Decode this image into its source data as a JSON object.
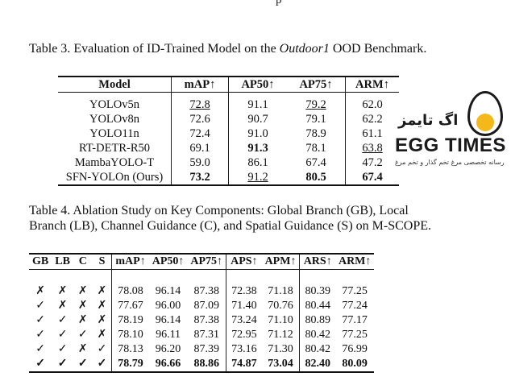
{
  "top_fragment": "p",
  "table3": {
    "label": "Table 3.",
    "caption_pre": " Evaluation of ID-Trained Model on the ",
    "caption_ital": "Outdoor1",
    "caption_post": " OOD Benchmark.",
    "headers": [
      "Model",
      "mAP↑",
      "AP50↑",
      "AP75↑",
      "ARM↑"
    ],
    "rows": [
      {
        "model": "YOLOv5n",
        "map": "72.8",
        "ap50": "91.1",
        "ap75": "79.2",
        "arm": "62.0"
      },
      {
        "model": "YOLOv8n",
        "map": "72.6",
        "ap50": "90.7",
        "ap75": "79.1",
        "arm": "62.2"
      },
      {
        "model": "YOLO11n",
        "map": "72.4",
        "ap50": "91.0",
        "ap75": "78.9",
        "arm": "61.1"
      },
      {
        "model": "RT-DETR-R50",
        "map": "69.1",
        "ap50": "91.3",
        "ap75": "78.1",
        "arm": "63.8"
      },
      {
        "model": "MambaYOLO-T",
        "map": "59.0",
        "ap50": "86.1",
        "ap75": "67.4",
        "arm": "47.2"
      },
      {
        "model": "SFN-YOLOn (Ours)",
        "map": "73.2",
        "ap50": "91.2",
        "ap75": "80.5",
        "arm": "67.4"
      }
    ]
  },
  "table4": {
    "label": "Table 4.",
    "caption": " Ablation Study on Key Components: Global Branch (GB), Local Branch (LB), Channel Guidance (C), and Spatial Guidance (S) on M-SCOPE.",
    "headers": [
      "GB",
      "LB",
      "C",
      "S",
      "mAP↑",
      "AP50↑",
      "AP75↑",
      "APS↑",
      "APM↑",
      "ARS↑",
      "ARM↑"
    ],
    "rows": [
      {
        "gb": "✗",
        "lb": "✗",
        "c": "✗",
        "s": "✗",
        "map": "78.08",
        "ap50": "96.14",
        "ap75": "87.38",
        "aps": "72.38",
        "apm": "71.18",
        "ars": "80.39",
        "arm": "77.25"
      },
      {
        "gb": "✓",
        "lb": "✗",
        "c": "✗",
        "s": "✗",
        "map": "77.67",
        "ap50": "96.00",
        "ap75": "87.09",
        "aps": "71.40",
        "apm": "70.76",
        "ars": "80.44",
        "arm": "77.24"
      },
      {
        "gb": "✓",
        "lb": "✓",
        "c": "✗",
        "s": "✗",
        "map": "78.19",
        "ap50": "96.14",
        "ap75": "87.38",
        "aps": "73.24",
        "apm": "71.10",
        "ars": "80.89",
        "arm": "77.17"
      },
      {
        "gb": "✓",
        "lb": "✓",
        "c": "✓",
        "s": "✗",
        "map": "78.10",
        "ap50": "96.11",
        "ap75": "87.31",
        "aps": "72.95",
        "apm": "71.12",
        "ars": "80.42",
        "arm": "77.25"
      },
      {
        "gb": "✓",
        "lb": "✓",
        "c": "✗",
        "s": "✓",
        "map": "78.13",
        "ap50": "96.20",
        "ap75": "87.39",
        "aps": "73.16",
        "apm": "71.30",
        "ars": "80.42",
        "arm": "76.99"
      },
      {
        "gb": "✓",
        "lb": "✓",
        "c": "✓",
        "s": "✓",
        "map": "78.79",
        "ap50": "96.66",
        "ap75": "88.86",
        "aps": "74.87",
        "apm": "73.04",
        "ars": "82.40",
        "arm": "80.09"
      }
    ]
  },
  "logo": {
    "arabic_title": "اگ تایمز",
    "english_title": "EGG TIMES",
    "tagline": "رسانه تخصصی مرغ تخم گذار و تخم مرغ",
    "colors": {
      "yolk": "#f4b81b",
      "outline": "#1a1a1a"
    }
  }
}
